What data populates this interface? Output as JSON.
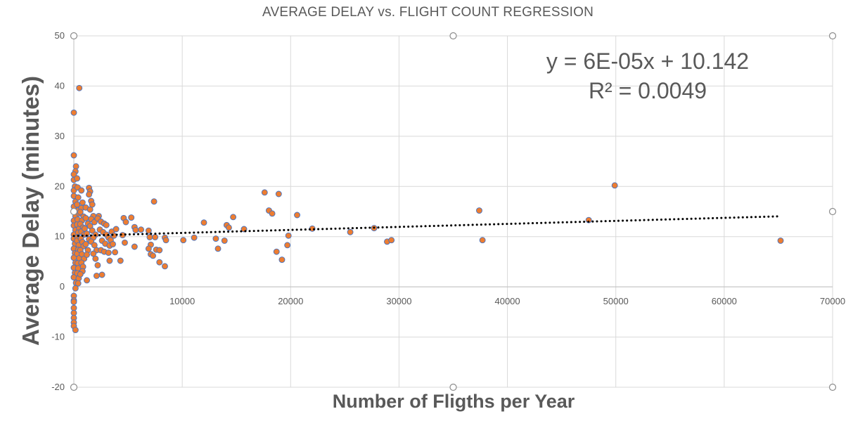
{
  "chart_data": {
    "type": "scatter",
    "title": "AVERAGE DELAY vs. FLIGHT COUNT REGRESSION",
    "xlabel": "Number of Fligths per Year",
    "ylabel": "Average Delay (minutes)",
    "xlim": [
      0,
      70000
    ],
    "ylim": [
      -20,
      50
    ],
    "x_ticks": [
      10000,
      20000,
      30000,
      40000,
      50000,
      60000,
      70000
    ],
    "y_ticks": [
      -20,
      -10,
      0,
      10,
      20,
      30,
      40,
      50
    ],
    "grid": true,
    "marker_color": "#ED7D31",
    "marker_edge_color": "#4472C4",
    "trendline": {
      "type": "linear",
      "slope": 6e-05,
      "intercept": 10.142,
      "x_range": [
        0,
        65000
      ],
      "style": "dotted",
      "color": "#000000",
      "equation": "y = 6E-05x + 10.142",
      "r_squared": "R² = 0.0049"
    },
    "series": [
      {
        "points": [
          [
            0,
            34.7
          ],
          [
            0,
            26.2
          ],
          [
            200,
            24.0
          ],
          [
            150,
            23.0
          ],
          [
            0,
            22.4
          ],
          [
            0,
            21.3
          ],
          [
            100,
            20.0
          ],
          [
            0,
            19.2
          ],
          [
            0,
            18.1
          ],
          [
            150,
            17.0
          ],
          [
            0,
            16.0
          ],
          [
            0,
            15.0
          ],
          [
            150,
            14.1
          ],
          [
            0,
            13.2
          ],
          [
            0,
            12.2
          ],
          [
            150,
            11.3
          ],
          [
            0,
            10.4
          ],
          [
            0,
            9.6
          ],
          [
            100,
            8.6
          ],
          [
            0,
            7.6
          ],
          [
            100,
            6.7
          ],
          [
            0,
            5.8
          ],
          [
            150,
            4.8
          ],
          [
            0,
            3.8
          ],
          [
            100,
            2.8
          ],
          [
            0,
            1.9
          ],
          [
            200,
            0.8
          ],
          [
            150,
            -0.3
          ],
          [
            0,
            -1.8
          ],
          [
            0,
            -2.7
          ],
          [
            0,
            -3.0
          ],
          [
            0,
            -4.2
          ],
          [
            0,
            -5.2
          ],
          [
            0,
            -6.2
          ],
          [
            0,
            -7.1
          ],
          [
            0,
            -7.8
          ],
          [
            150,
            -8.6
          ],
          [
            300,
            21.6
          ],
          [
            350,
            19.8
          ],
          [
            400,
            17.8
          ],
          [
            300,
            16.4
          ],
          [
            400,
            15.2
          ],
          [
            500,
            14.6
          ],
          [
            350,
            13.4
          ],
          [
            300,
            12.4
          ],
          [
            500,
            11.6
          ],
          [
            400,
            10.8
          ],
          [
            350,
            9.9
          ],
          [
            300,
            9.2
          ],
          [
            450,
            8.3
          ],
          [
            400,
            7.4
          ],
          [
            300,
            6.6
          ],
          [
            500,
            5.7
          ],
          [
            350,
            4.7
          ],
          [
            400,
            3.7
          ],
          [
            300,
            2.7
          ],
          [
            450,
            1.7
          ],
          [
            400,
            0.7
          ],
          [
            500,
            39.6
          ],
          [
            700,
            19.2
          ],
          [
            800,
            16.8
          ],
          [
            700,
            15.7
          ],
          [
            600,
            14.9
          ],
          [
            900,
            14.0
          ],
          [
            750,
            13.2
          ],
          [
            600,
            12.5
          ],
          [
            850,
            11.8
          ],
          [
            700,
            11.0
          ],
          [
            950,
            10.4
          ],
          [
            650,
            9.6
          ],
          [
            800,
            8.9
          ],
          [
            900,
            8.1
          ],
          [
            600,
            7.3
          ],
          [
            750,
            6.5
          ],
          [
            950,
            5.6
          ],
          [
            700,
            4.8
          ],
          [
            850,
            4.0
          ],
          [
            800,
            3.1
          ],
          [
            600,
            2.5
          ],
          [
            1100,
            13.7
          ],
          [
            1300,
            12.6
          ],
          [
            1000,
            11.6
          ],
          [
            1200,
            10.6
          ],
          [
            1400,
            9.5
          ],
          [
            1100,
            8.5
          ],
          [
            1300,
            7.3
          ],
          [
            1200,
            6.4
          ],
          [
            1100,
            15.8
          ],
          [
            1200,
            1.3
          ],
          [
            1400,
            19.7
          ],
          [
            1500,
            19.0
          ],
          [
            1400,
            18.4
          ],
          [
            1600,
            17.1
          ],
          [
            1700,
            16.4
          ],
          [
            1500,
            15.4
          ],
          [
            1800,
            14.1
          ],
          [
            1600,
            13.5
          ],
          [
            1900,
            12.9
          ],
          [
            1500,
            12.1
          ],
          [
            1700,
            11.2
          ],
          [
            2000,
            10.4
          ],
          [
            1800,
            9.8
          ],
          [
            1600,
            9.0
          ],
          [
            1900,
            8.3
          ],
          [
            2100,
            7.3
          ],
          [
            1800,
            6.6
          ],
          [
            2000,
            5.6
          ],
          [
            2200,
            4.3
          ],
          [
            2100,
            2.2
          ],
          [
            2300,
            14.1
          ],
          [
            2200,
            13.6
          ],
          [
            2500,
            13.0
          ],
          [
            2800,
            12.6
          ],
          [
            3000,
            12.3
          ],
          [
            2400,
            11.4
          ],
          [
            2700,
            10.9
          ],
          [
            3000,
            10.4
          ],
          [
            3200,
            9.8
          ],
          [
            2600,
            9.2
          ],
          [
            2900,
            8.6
          ],
          [
            3300,
            8.2
          ],
          [
            2500,
            7.3
          ],
          [
            2800,
            7.0
          ],
          [
            3200,
            6.8
          ],
          [
            2600,
            2.4
          ],
          [
            3500,
            11.0
          ],
          [
            3700,
            10.2
          ],
          [
            3900,
            11.5
          ],
          [
            3400,
            9.3
          ],
          [
            3600,
            8.5
          ],
          [
            3800,
            6.9
          ],
          [
            3300,
            5.2
          ],
          [
            4300,
            5.2
          ],
          [
            4600,
            13.7
          ],
          [
            4800,
            12.9
          ],
          [
            4500,
            10.3
          ],
          [
            4700,
            8.8
          ],
          [
            5300,
            13.8
          ],
          [
            5600,
            11.9
          ],
          [
            5700,
            11.3
          ],
          [
            5600,
            8.0
          ],
          [
            6200,
            11.4
          ],
          [
            6900,
            11.2
          ],
          [
            7000,
            9.9
          ],
          [
            7100,
            8.4
          ],
          [
            6900,
            7.6
          ],
          [
            7100,
            6.5
          ],
          [
            7300,
            6.2
          ],
          [
            7600,
            7.4
          ],
          [
            7900,
            7.3
          ],
          [
            7900,
            4.9
          ],
          [
            8400,
            4.1
          ],
          [
            8400,
            9.8
          ],
          [
            8500,
            9.3
          ],
          [
            7400,
            17.0
          ],
          [
            7500,
            9.9
          ],
          [
            10100,
            9.3
          ],
          [
            11100,
            9.8
          ],
          [
            12000,
            12.8
          ],
          [
            13100,
            9.6
          ],
          [
            13300,
            7.6
          ],
          [
            13900,
            9.2
          ],
          [
            14100,
            12.3
          ],
          [
            14300,
            11.8
          ],
          [
            14700,
            13.9
          ],
          [
            15700,
            11.5
          ],
          [
            17600,
            18.8
          ],
          [
            18000,
            15.2
          ],
          [
            18300,
            14.6
          ],
          [
            18700,
            7.0
          ],
          [
            18900,
            18.5
          ],
          [
            19200,
            5.4
          ],
          [
            19700,
            8.3
          ],
          [
            19800,
            10.2
          ],
          [
            20600,
            14.3
          ],
          [
            22000,
            11.6
          ],
          [
            25500,
            10.9
          ],
          [
            27700,
            11.7
          ],
          [
            28900,
            9.0
          ],
          [
            29300,
            9.3
          ],
          [
            37400,
            15.2
          ],
          [
            37700,
            9.3
          ],
          [
            47500,
            13.3
          ],
          [
            49900,
            20.2
          ],
          [
            65200,
            9.2
          ]
        ]
      }
    ]
  }
}
